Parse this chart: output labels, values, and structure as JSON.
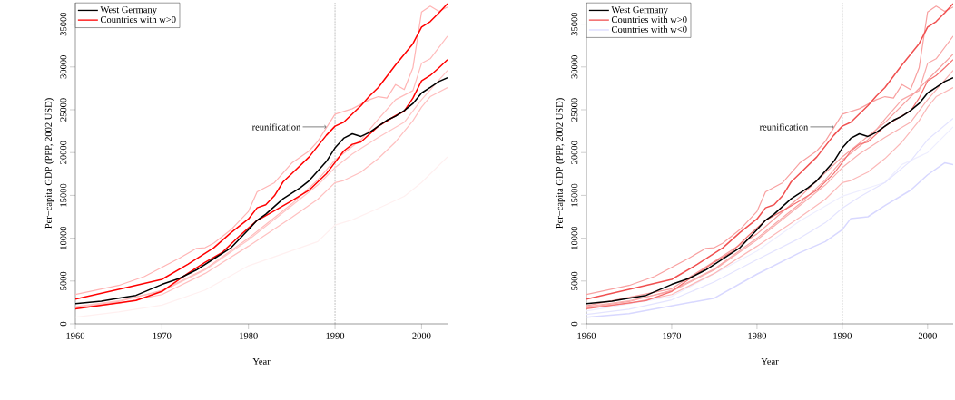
{
  "chart_data": [
    {
      "type": "line",
      "xlabel": "Year",
      "ylabel": "Per−capita GDP (PPP, 2002 USD)",
      "xlim": [
        1960,
        2003
      ],
      "ylim": [
        0,
        37500
      ],
      "xticks": [
        1960,
        1970,
        1980,
        1990,
        2000
      ],
      "yticks": [
        0,
        5000,
        10000,
        15000,
        20000,
        25000,
        30000,
        35000
      ],
      "legend": "top left",
      "ref_lines": [
        {
          "axis": "x",
          "value": 1990,
          "color": "#000000",
          "line_style": "dotted"
        }
      ],
      "annotations": [
        {
          "text": "reunification",
          "x": 1989,
          "y": 23000
        }
      ],
      "series": [
        {
          "name": "West Germany",
          "color": "#000000",
          "x": [
            1960,
            1963,
            1965,
            1967,
            1970,
            1972,
            1974,
            1976,
            1978,
            1980,
            1981,
            1982,
            1984,
            1986,
            1987,
            1989,
            1990,
            1991,
            1992,
            1993,
            1994,
            1995,
            1996,
            1997,
            1998,
            1999,
            2000,
            2001,
            2002,
            2003
          ],
          "values": [
            2360,
            2650,
            3000,
            3320,
            4600,
            5300,
            6300,
            7600,
            8890,
            11000,
            12100,
            12800,
            14600,
            15900,
            16700,
            18950,
            20540,
            21670,
            22190,
            21880,
            22370,
            23080,
            23780,
            24240,
            24900,
            25720,
            26960,
            27600,
            28300,
            28740
          ]
        },
        {
          "name": "Countries with w>0",
          "color": "#ff0000",
          "x": [
            1960,
            1965,
            1970,
            1973,
            1976,
            1978,
            1980,
            1981,
            1982,
            1983,
            1984,
            1985,
            1987,
            1989,
            1990,
            1991,
            1993,
            1994,
            1995,
            1997,
            1999,
            2000,
            2001,
            2002,
            2003
          ],
          "values": [
            2890,
            4020,
            5190,
            6950,
            8890,
            10660,
            12240,
            13550,
            13900,
            14960,
            16580,
            17540,
            19480,
            22020,
            23080,
            23540,
            25480,
            26610,
            27590,
            30240,
            32710,
            34650,
            35300,
            36300,
            37400
          ]
        },
        {
          "color": "#ff0000",
          "x": [
            1960,
            1967,
            1970,
            1973,
            1975,
            1977,
            1979,
            1981,
            1983,
            1985,
            1987,
            1989,
            1990,
            1991,
            1992,
            1993,
            1995,
            1997,
            1998,
            1999,
            2000,
            2001,
            2002,
            2003
          ],
          "values": [
            1760,
            2720,
            3780,
            5890,
            7200,
            8360,
            10300,
            12070,
            13200,
            14360,
            15600,
            17540,
            18840,
            20180,
            20960,
            21240,
            23080,
            24310,
            24840,
            26360,
            28370,
            29000,
            29900,
            30860
          ]
        },
        {
          "color": "#ffb4b4",
          "x": [
            1960,
            1965,
            1968,
            1970,
            1972,
            1974,
            1975,
            1976,
            1978,
            1980,
            1981,
            1983,
            1985,
            1987,
            1988,
            1990,
            1992,
            1994,
            1995,
            1996,
            1997,
            1998,
            1999,
            2000,
            2001,
            2002,
            2003
          ],
          "values": [
            3420,
            4480,
            5540,
            6600,
            7660,
            8820,
            8890,
            9420,
            11010,
            13130,
            15420,
            16480,
            18770,
            20180,
            21310,
            24490,
            25120,
            26180,
            26530,
            26360,
            27950,
            27350,
            29890,
            36420,
            37100,
            36500,
            37000
          ]
        },
        {
          "color": "#ffbcbc",
          "x": [
            1960,
            1965,
            1970,
            1975,
            1980,
            1985,
            1988,
            1990,
            1993,
            1995,
            1997,
            1999,
            2000,
            2001,
            2003
          ],
          "values": [
            1900,
            2600,
            3900,
            6400,
            10000,
            14000,
            16800,
            19130,
            21500,
            23890,
            26180,
            27240,
            30420,
            30950,
            33600
          ]
        },
        {
          "color": "#ffc4c4",
          "x": [
            1960,
            1965,
            1970,
            1975,
            1980,
            1985,
            1988,
            1990,
            1992,
            1995,
            1998,
            2000,
            2003
          ],
          "values": [
            2000,
            2700,
            3800,
            6300,
            9800,
            13800,
            16200,
            18240,
            19830,
            21770,
            23540,
            26180,
            29600
          ]
        },
        {
          "color": "#ffc0c0",
          "x": [
            1960,
            1965,
            1970,
            1975,
            1980,
            1985,
            1988,
            1990,
            1991,
            1993,
            1995,
            1997,
            1999,
            2000,
            2001,
            2003
          ],
          "values": [
            1830,
            2400,
            3420,
            5890,
            9070,
            12420,
            14540,
            16480,
            16730,
            17710,
            19300,
            21240,
            23710,
            25300,
            26530,
            27600
          ]
        },
        {
          "color": "#fff0f0",
          "x": [
            1960,
            1965,
            1970,
            1975,
            1980,
            1985,
            1988,
            1990,
            1992,
            1995,
            1998,
            2000,
            2003
          ],
          "values": [
            780,
            1400,
            2190,
            3950,
            6770,
            8540,
            9600,
            11540,
            12140,
            13480,
            14890,
            16500,
            19500
          ]
        }
      ]
    },
    {
      "type": "line",
      "xlabel": "Year",
      "ylabel": "Per−capita GDP (PPP, 2002 USD)",
      "xlim": [
        1960,
        2003
      ],
      "ylim": [
        0,
        37500
      ],
      "xticks": [
        1960,
        1970,
        1980,
        1990,
        2000
      ],
      "yticks": [
        0,
        5000,
        10000,
        15000,
        20000,
        25000,
        30000,
        35000
      ],
      "legend": "top left",
      "ref_lines": [
        {
          "axis": "x",
          "value": 1990,
          "color": "#000000",
          "line_style": "dotted"
        }
      ],
      "annotations": [
        {
          "text": "reunification",
          "x": 1989,
          "y": 23000
        }
      ],
      "series": [
        {
          "name": "West Germany",
          "color": "#000000",
          "x": [
            1960,
            1963,
            1965,
            1967,
            1970,
            1972,
            1974,
            1976,
            1978,
            1980,
            1981,
            1982,
            1984,
            1986,
            1987,
            1989,
            1990,
            1991,
            1992,
            1993,
            1994,
            1995,
            1996,
            1997,
            1998,
            1999,
            2000,
            2001,
            2002,
            2003
          ],
          "values": [
            2360,
            2650,
            3000,
            3320,
            4600,
            5300,
            6300,
            7600,
            8890,
            11000,
            12100,
            12800,
            14600,
            15900,
            16700,
            18950,
            20540,
            21670,
            22190,
            21880,
            22370,
            23080,
            23780,
            24240,
            24900,
            25720,
            26960,
            27600,
            28300,
            28740
          ]
        },
        {
          "name": "Countries with w>0",
          "color": "#f05050",
          "x": [
            1960,
            1965,
            1970,
            1973,
            1976,
            1978,
            1980,
            1981,
            1982,
            1983,
            1984,
            1985,
            1987,
            1989,
            1990,
            1991,
            1993,
            1994,
            1995,
            1997,
            1999,
            2000,
            2001,
            2002,
            2003
          ],
          "values": [
            2890,
            4020,
            5190,
            6950,
            8890,
            10660,
            12240,
            13550,
            13900,
            14960,
            16580,
            17540,
            19480,
            22020,
            23080,
            23540,
            25480,
            26610,
            27590,
            30240,
            32710,
            34650,
            35300,
            36300,
            37400
          ]
        },
        {
          "color": "#f47070",
          "x": [
            1960,
            1967,
            1970,
            1973,
            1975,
            1977,
            1979,
            1981,
            1983,
            1985,
            1987,
            1989,
            1990,
            1991,
            1992,
            1993,
            1995,
            1997,
            1998,
            1999,
            2000,
            2001,
            2002,
            2003
          ],
          "values": [
            1760,
            2720,
            3780,
            5890,
            7200,
            8360,
            10300,
            12070,
            13200,
            14360,
            15600,
            17540,
            18840,
            20180,
            20960,
            21240,
            23080,
            24310,
            24840,
            26360,
            28370,
            29000,
            29900,
            30860
          ]
        },
        {
          "color": "#f6a0a0",
          "x": [
            1960,
            1970,
            1980,
            1985,
            1990,
            1995,
            2000,
            2003
          ],
          "values": [
            2100,
            4100,
            10500,
            14800,
            19500,
            23500,
            28500,
            31500
          ]
        },
        {
          "color": "#f8a0a0",
          "x": [
            1960,
            1965,
            1968,
            1970,
            1972,
            1974,
            1975,
            1976,
            1978,
            1980,
            1981,
            1983,
            1985,
            1987,
            1988,
            1990,
            1992,
            1994,
            1995,
            1996,
            1997,
            1998,
            1999,
            2000,
            2001,
            2002,
            2003
          ],
          "values": [
            3420,
            4480,
            5540,
            6600,
            7660,
            8820,
            8890,
            9420,
            11010,
            13130,
            15420,
            16480,
            18770,
            20180,
            21310,
            24490,
            25120,
            26180,
            26530,
            26360,
            27950,
            27350,
            29890,
            36420,
            37100,
            36500,
            37000
          ]
        },
        {
          "color": "#f8a8a8",
          "x": [
            1960,
            1965,
            1970,
            1975,
            1980,
            1985,
            1988,
            1990,
            1993,
            1995,
            1997,
            1999,
            2000,
            2001,
            2003
          ],
          "values": [
            1900,
            2600,
            3900,
            6400,
            10000,
            14000,
            16800,
            19130,
            21500,
            23890,
            26180,
            27240,
            30420,
            30950,
            33600
          ]
        },
        {
          "color": "#f9b0b0",
          "x": [
            1960,
            1965,
            1970,
            1975,
            1980,
            1985,
            1988,
            1990,
            1992,
            1995,
            1998,
            2000,
            2003
          ],
          "values": [
            2000,
            2700,
            3800,
            6300,
            9800,
            13800,
            16200,
            18240,
            19830,
            21770,
            23540,
            26180,
            29600
          ]
        },
        {
          "color": "#fbb8b8",
          "x": [
            1960,
            1965,
            1970,
            1975,
            1980,
            1985,
            1988,
            1990,
            1991,
            1993,
            1995,
            1997,
            1999,
            2000,
            2001,
            2003
          ],
          "values": [
            1830,
            2400,
            3420,
            5890,
            9070,
            12420,
            14540,
            16480,
            16730,
            17710,
            19300,
            21240,
            23710,
            25300,
            26530,
            27600
          ]
        },
        {
          "color": "#e4e4ff",
          "x": [
            1960,
            1965,
            1970,
            1975,
            1980,
            1985,
            1988,
            1990,
            1992,
            1995,
            1998,
            2000,
            2003
          ],
          "values": [
            1100,
            1700,
            2800,
            4900,
            7500,
            10000,
            11800,
            13500,
            14800,
            16500,
            19000,
            21500,
            24000
          ]
        },
        {
          "color": "#eeeeff",
          "x": [
            1960,
            1970,
            1980,
            1985,
            1990,
            1995,
            1997,
            2000,
            2003
          ],
          "values": [
            1500,
            3200,
            8500,
            12000,
            14900,
            16500,
            18600,
            20000,
            23000
          ]
        },
        {
          "name": "Countries with w<0",
          "color": "#d8d8ff",
          "x": [
            1960,
            1965,
            1970,
            1975,
            1980,
            1985,
            1988,
            1990,
            1991,
            1993,
            1995,
            1998,
            2000,
            2002,
            2003
          ],
          "values": [
            780,
            1200,
            2100,
            3000,
            5800,
            8300,
            9600,
            11000,
            12300,
            12500,
            13800,
            15600,
            17400,
            18800,
            18600
          ]
        }
      ]
    }
  ]
}
